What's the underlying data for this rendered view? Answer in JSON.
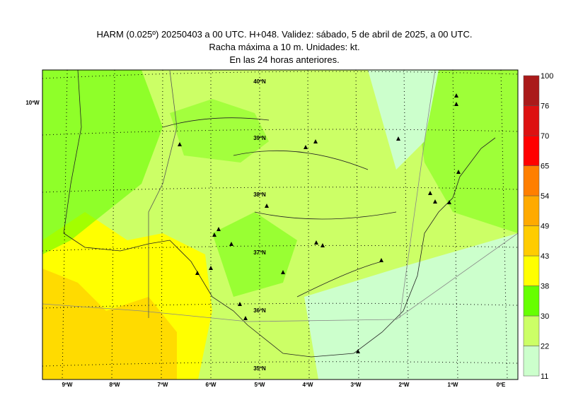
{
  "header": {
    "lines": [
      "HARM (0.025º) 20250403 a 00 UTC. H+048. Validez: sábado, 5 de abril de 2025, a 00 UTC.",
      "Racha máxima a 10 m. Unidades: kt.",
      "En las 24 horas anteriores."
    ]
  },
  "map": {
    "lat_labels": [
      "40ºN",
      "39ºN",
      "38ºN",
      "37ºN",
      "36ºN",
      "35ºN"
    ],
    "lon_labels": [
      "9ºW",
      "8ºW",
      "7ºW",
      "6ºW",
      "5ºW",
      "4ºW",
      "3ºW",
      "2ºW",
      "1ºW",
      "0ºE"
    ],
    "side_label": "10ºW"
  },
  "colorbar": {
    "levels": [
      11,
      22,
      30,
      38,
      43,
      49,
      54,
      65,
      70,
      76,
      100
    ],
    "colors": [
      "#ccffcc",
      "#ccff66",
      "#66ff00",
      "#ffff00",
      "#ffcc00",
      "#ffaa00",
      "#ff7f00",
      "#ff0000",
      "#dd1111",
      "#aa1a1a"
    ]
  }
}
